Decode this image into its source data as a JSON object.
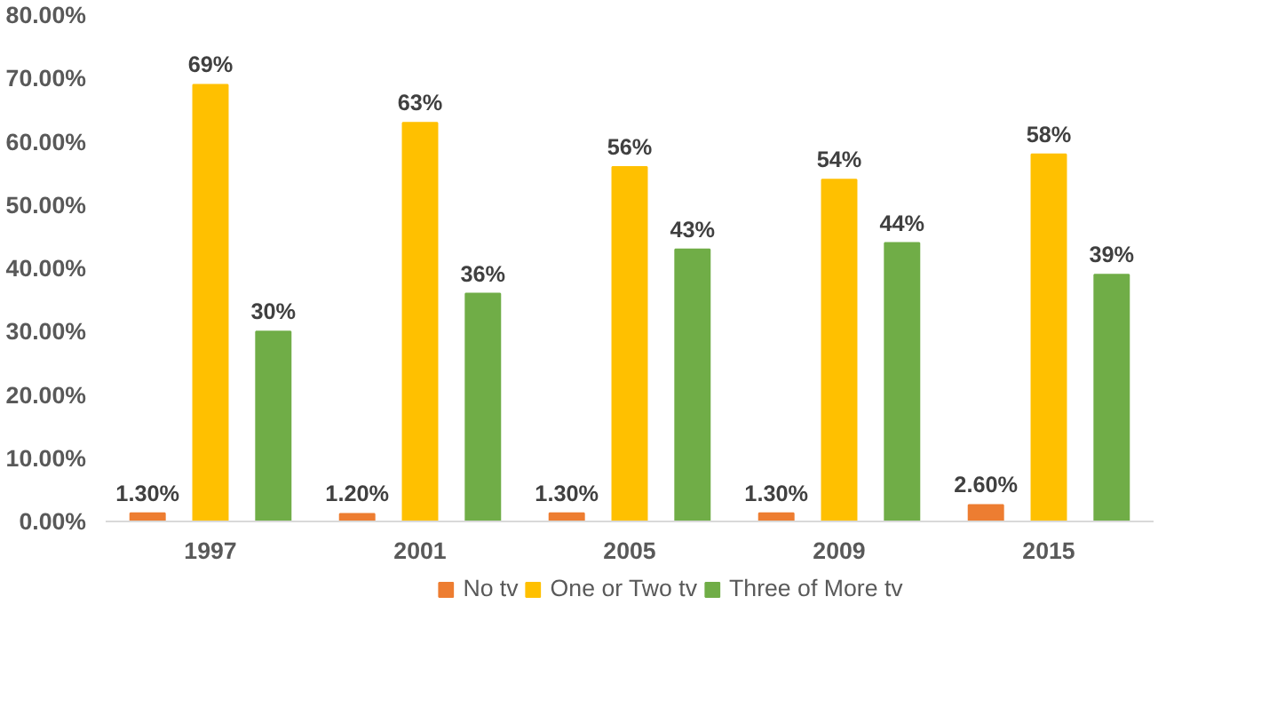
{
  "chart_data": {
    "type": "bar",
    "categories": [
      "1997",
      "2001",
      "2005",
      "2009",
      "2015"
    ],
    "series": [
      {
        "name": "No tv",
        "color": "#ed7d31",
        "values": [
          1.3,
          1.2,
          1.3,
          1.3,
          2.6
        ],
        "value_labels": [
          "1.30%",
          "1.20%",
          "1.30%",
          "1.30%",
          "2.60%"
        ]
      },
      {
        "name": "One or Two tv",
        "color": "#ffc000",
        "values": [
          69,
          63,
          56,
          54,
          58
        ],
        "value_labels": [
          "69%",
          "63%",
          "56%",
          "54%",
          "58%"
        ]
      },
      {
        "name": "Three of More tv",
        "color": "#70ad47",
        "values": [
          30,
          36,
          43,
          44,
          39
        ],
        "value_labels": [
          "30%",
          "36%",
          "43%",
          "44%",
          "39%"
        ]
      }
    ],
    "ylim": [
      0,
      80
    ],
    "yticks": [
      {
        "value": 0,
        "label": "0.00%"
      },
      {
        "value": 10,
        "label": "10.00%"
      },
      {
        "value": 20,
        "label": "20.00%"
      },
      {
        "value": 30,
        "label": "30.00%"
      },
      {
        "value": 40,
        "label": "40.00%"
      },
      {
        "value": 50,
        "label": "50.00%"
      },
      {
        "value": 60,
        "label": "60.00%"
      },
      {
        "value": 70,
        "label": "70.00%"
      },
      {
        "value": 80,
        "label": "80.00%"
      }
    ],
    "grid": false,
    "legend": "bottom"
  }
}
